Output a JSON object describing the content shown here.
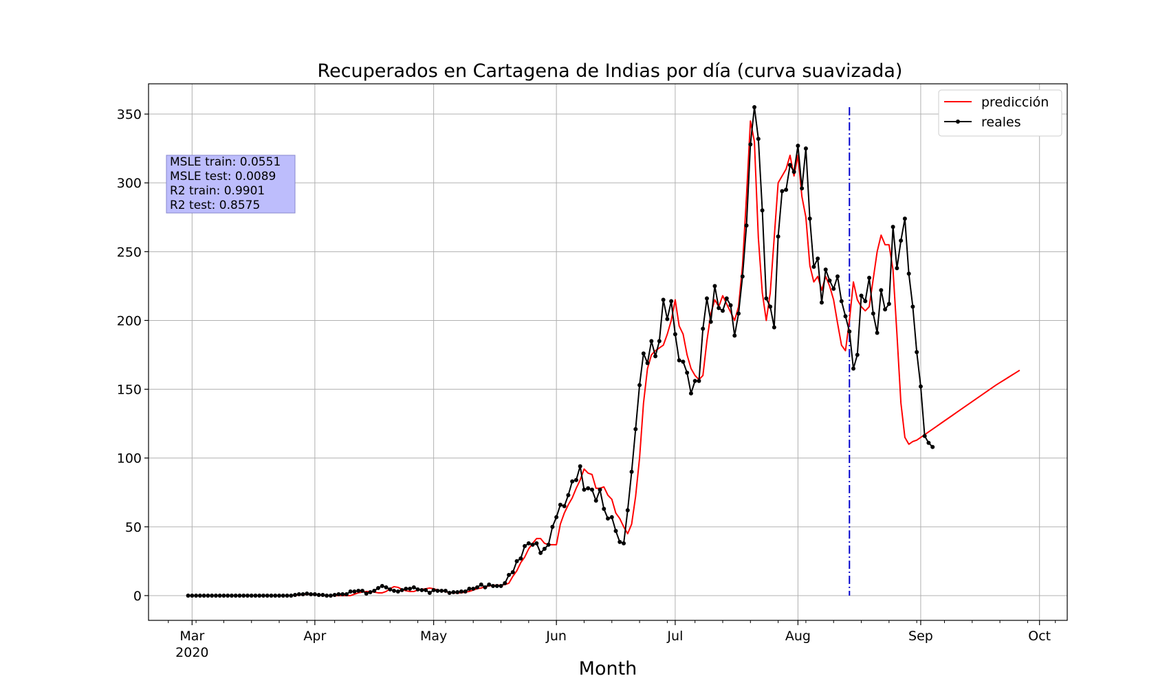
{
  "chart_data": {
    "type": "line",
    "title": "Recuperados en Cartagena de Indias por día (curva suavizada)",
    "xlabel": "Month",
    "ylabel": "",
    "x_axis": "date",
    "xlim": [
      "2020-02-19",
      "2020-10-08"
    ],
    "ylim": [
      -18,
      372
    ],
    "grid": true,
    "legend_placement": "top-right",
    "x_ticks": [
      {
        "date": "2020-03-01",
        "label": "Mar",
        "sublabel": "2020"
      },
      {
        "date": "2020-04-01",
        "label": "Apr",
        "sublabel": ""
      },
      {
        "date": "2020-05-01",
        "label": "May",
        "sublabel": ""
      },
      {
        "date": "2020-06-01",
        "label": "Jun",
        "sublabel": ""
      },
      {
        "date": "2020-07-01",
        "label": "Jul",
        "sublabel": ""
      },
      {
        "date": "2020-08-01",
        "label": "Aug",
        "sublabel": ""
      },
      {
        "date": "2020-09-01",
        "label": "Sep",
        "sublabel": ""
      },
      {
        "date": "2020-10-01",
        "label": "Oct",
        "sublabel": ""
      }
    ],
    "y_ticks": [
      0,
      50,
      100,
      150,
      200,
      250,
      300,
      350
    ],
    "train_test_split_date": "2020-08-14",
    "colors": {
      "prediction": "#ff0000",
      "actual": "#000000",
      "split_line": "#0000cc",
      "stats_box": "#bdbdfc"
    },
    "stats_box": {
      "lines": [
        "MSLE train: 0.0551",
        "MSLE test: 0.0089",
        "R2 train: 0.9901",
        "R2 test: 0.8575"
      ]
    },
    "series": [
      {
        "name": "predicción",
        "role": "prediction",
        "start_date": "2020-02-29",
        "values": [
          0,
          0,
          0,
          0,
          0,
          0,
          0,
          0,
          0,
          0,
          0,
          0,
          0,
          0,
          0,
          0,
          0,
          0,
          0,
          0,
          0,
          0,
          0,
          0,
          0,
          0,
          0,
          0.2,
          0.5,
          0.8,
          1,
          1,
          0.8,
          0.5,
          0.2,
          0,
          0,
          0,
          0,
          0,
          0,
          0,
          1,
          2,
          2.5,
          3,
          3,
          2.5,
          2,
          2,
          3,
          5,
          6.5,
          6,
          4.5,
          3.5,
          3,
          3,
          4,
          4.5,
          5,
          5.5,
          5,
          4,
          3.5,
          3,
          2,
          2,
          2,
          2,
          2.5,
          3,
          4,
          5,
          5.5,
          6.5,
          7,
          7.5,
          7.5,
          7.5,
          8,
          9,
          14,
          18,
          24,
          28,
          34,
          38,
          41.5,
          41.5,
          38,
          37,
          37,
          37,
          52,
          60,
          66,
          71,
          78,
          84,
          92,
          89,
          88,
          78,
          78,
          79,
          73,
          70,
          60,
          56,
          50,
          45,
          52,
          72,
          100,
          140,
          165,
          175,
          178,
          180,
          182,
          190,
          200,
          215,
          196,
          190,
          175,
          165,
          160,
          157,
          160,
          185,
          205,
          215,
          210,
          218,
          212,
          206,
          200,
          210,
          240,
          290,
          345,
          330,
          260,
          220,
          200,
          220,
          260,
          300,
          305,
          310,
          320,
          305,
          320,
          290,
          275,
          240,
          228,
          232,
          222,
          232,
          225,
          215,
          198,
          182,
          178,
          200,
          228,
          215,
          210,
          207,
          210,
          230,
          250,
          262,
          255,
          255,
          237,
          190,
          140,
          115,
          110,
          112,
          113,
          115,
          117,
          119,
          121,
          123,
          125,
          127,
          129,
          131,
          133,
          135,
          137,
          139,
          141,
          143,
          145,
          147,
          149,
          151,
          153,
          154.8,
          156.6,
          158.4,
          160.2,
          162,
          163.8
        ]
      },
      {
        "name": "reales",
        "role": "actual",
        "start_date": "2020-02-29",
        "values": [
          0,
          0,
          0,
          0,
          0,
          0,
          0,
          0,
          0,
          0,
          0,
          0,
          0,
          0,
          0,
          0,
          0,
          0,
          0,
          0,
          0,
          0,
          0,
          0,
          0,
          0,
          0,
          0.5,
          1,
          1,
          1.5,
          1,
          1,
          0.5,
          0.5,
          0,
          0,
          0.5,
          1,
          1,
          1,
          3,
          3,
          3.5,
          3.5,
          1.5,
          2.5,
          3.5,
          5.5,
          7,
          6,
          4.5,
          3.5,
          3,
          4,
          5,
          5,
          6,
          4.5,
          4,
          4,
          2,
          4,
          3.5,
          3.5,
          3.5,
          2,
          2.5,
          2.5,
          3,
          3,
          5,
          5,
          6,
          8,
          6,
          8,
          7,
          7,
          7,
          9,
          15,
          17,
          25,
          27,
          36,
          38,
          37,
          38,
          31,
          34,
          37,
          50,
          57,
          66,
          65,
          73,
          83,
          84,
          94,
          77,
          78,
          77,
          69,
          77,
          63,
          56,
          57,
          47,
          39,
          38,
          62,
          90,
          121,
          153,
          176,
          169,
          185,
          174,
          185,
          215,
          201,
          214,
          190,
          171,
          170,
          162,
          147,
          156,
          156,
          194,
          216,
          199,
          225,
          209,
          207,
          216,
          211,
          189,
          205,
          232,
          269,
          328,
          355,
          332,
          280,
          216,
          210,
          195,
          261,
          294,
          295,
          313,
          308,
          327,
          296,
          325,
          274,
          239,
          245,
          213,
          237,
          229,
          223,
          232,
          214,
          203,
          192,
          165,
          175,
          218,
          214,
          231,
          205,
          191,
          222,
          208,
          212,
          268,
          238,
          258,
          274,
          234,
          210,
          177,
          152,
          116,
          111,
          108
        ]
      }
    ]
  }
}
